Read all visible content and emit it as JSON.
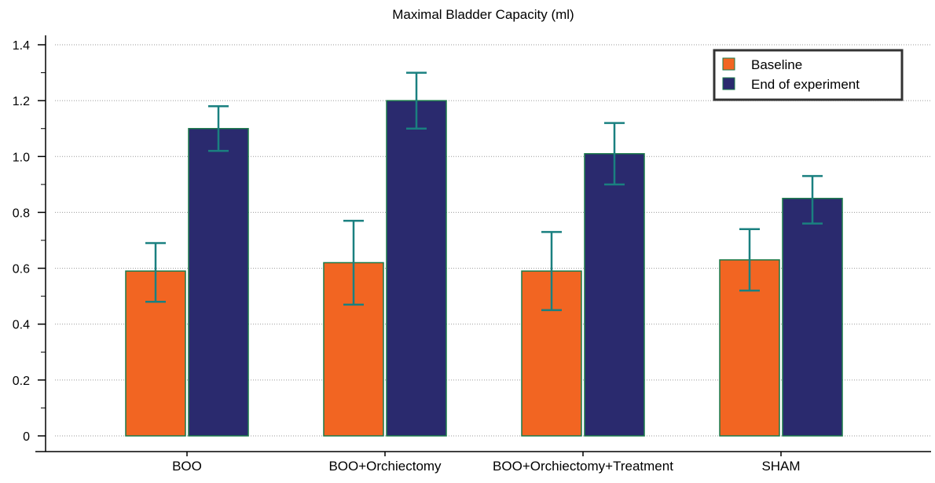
{
  "chart_data": {
    "type": "bar",
    "title": "Maximal Bladder Capacity (ml)",
    "xlabel": "",
    "ylabel": "",
    "categories": [
      "BOO",
      "BOO+Orchiectomy",
      "BOO+Orchiectomy+Treatment",
      "SHAM"
    ],
    "ylim": [
      0,
      1.4
    ],
    "yticks": [
      0,
      0.2,
      0.4,
      0.6,
      0.8,
      1.0,
      1.2,
      1.4
    ],
    "ytick_labels": [
      "0",
      "0.2",
      "0.4",
      "0.6",
      "0.8",
      "1.0",
      "1.2",
      "1.4"
    ],
    "grid": true,
    "legend_position": "top-right",
    "series": [
      {
        "name": "Baseline",
        "color": "#f26522",
        "values": [
          0.59,
          0.62,
          0.59,
          0.63
        ],
        "error_low": [
          0.48,
          0.47,
          0.45,
          0.52
        ],
        "error_high": [
          0.69,
          0.77,
          0.73,
          0.74
        ]
      },
      {
        "name": "End of experiment",
        "color": "#2a2a6e",
        "values": [
          1.1,
          1.2,
          1.01,
          0.85
        ],
        "error_low": [
          1.02,
          1.1,
          0.9,
          0.76
        ],
        "error_high": [
          1.18,
          1.3,
          1.12,
          0.93
        ]
      }
    ],
    "colors": {
      "bar_border": "#1a7a4a",
      "error_bar": "#1a8080",
      "grid": "#9a9a9a",
      "axis": "#000000"
    }
  }
}
